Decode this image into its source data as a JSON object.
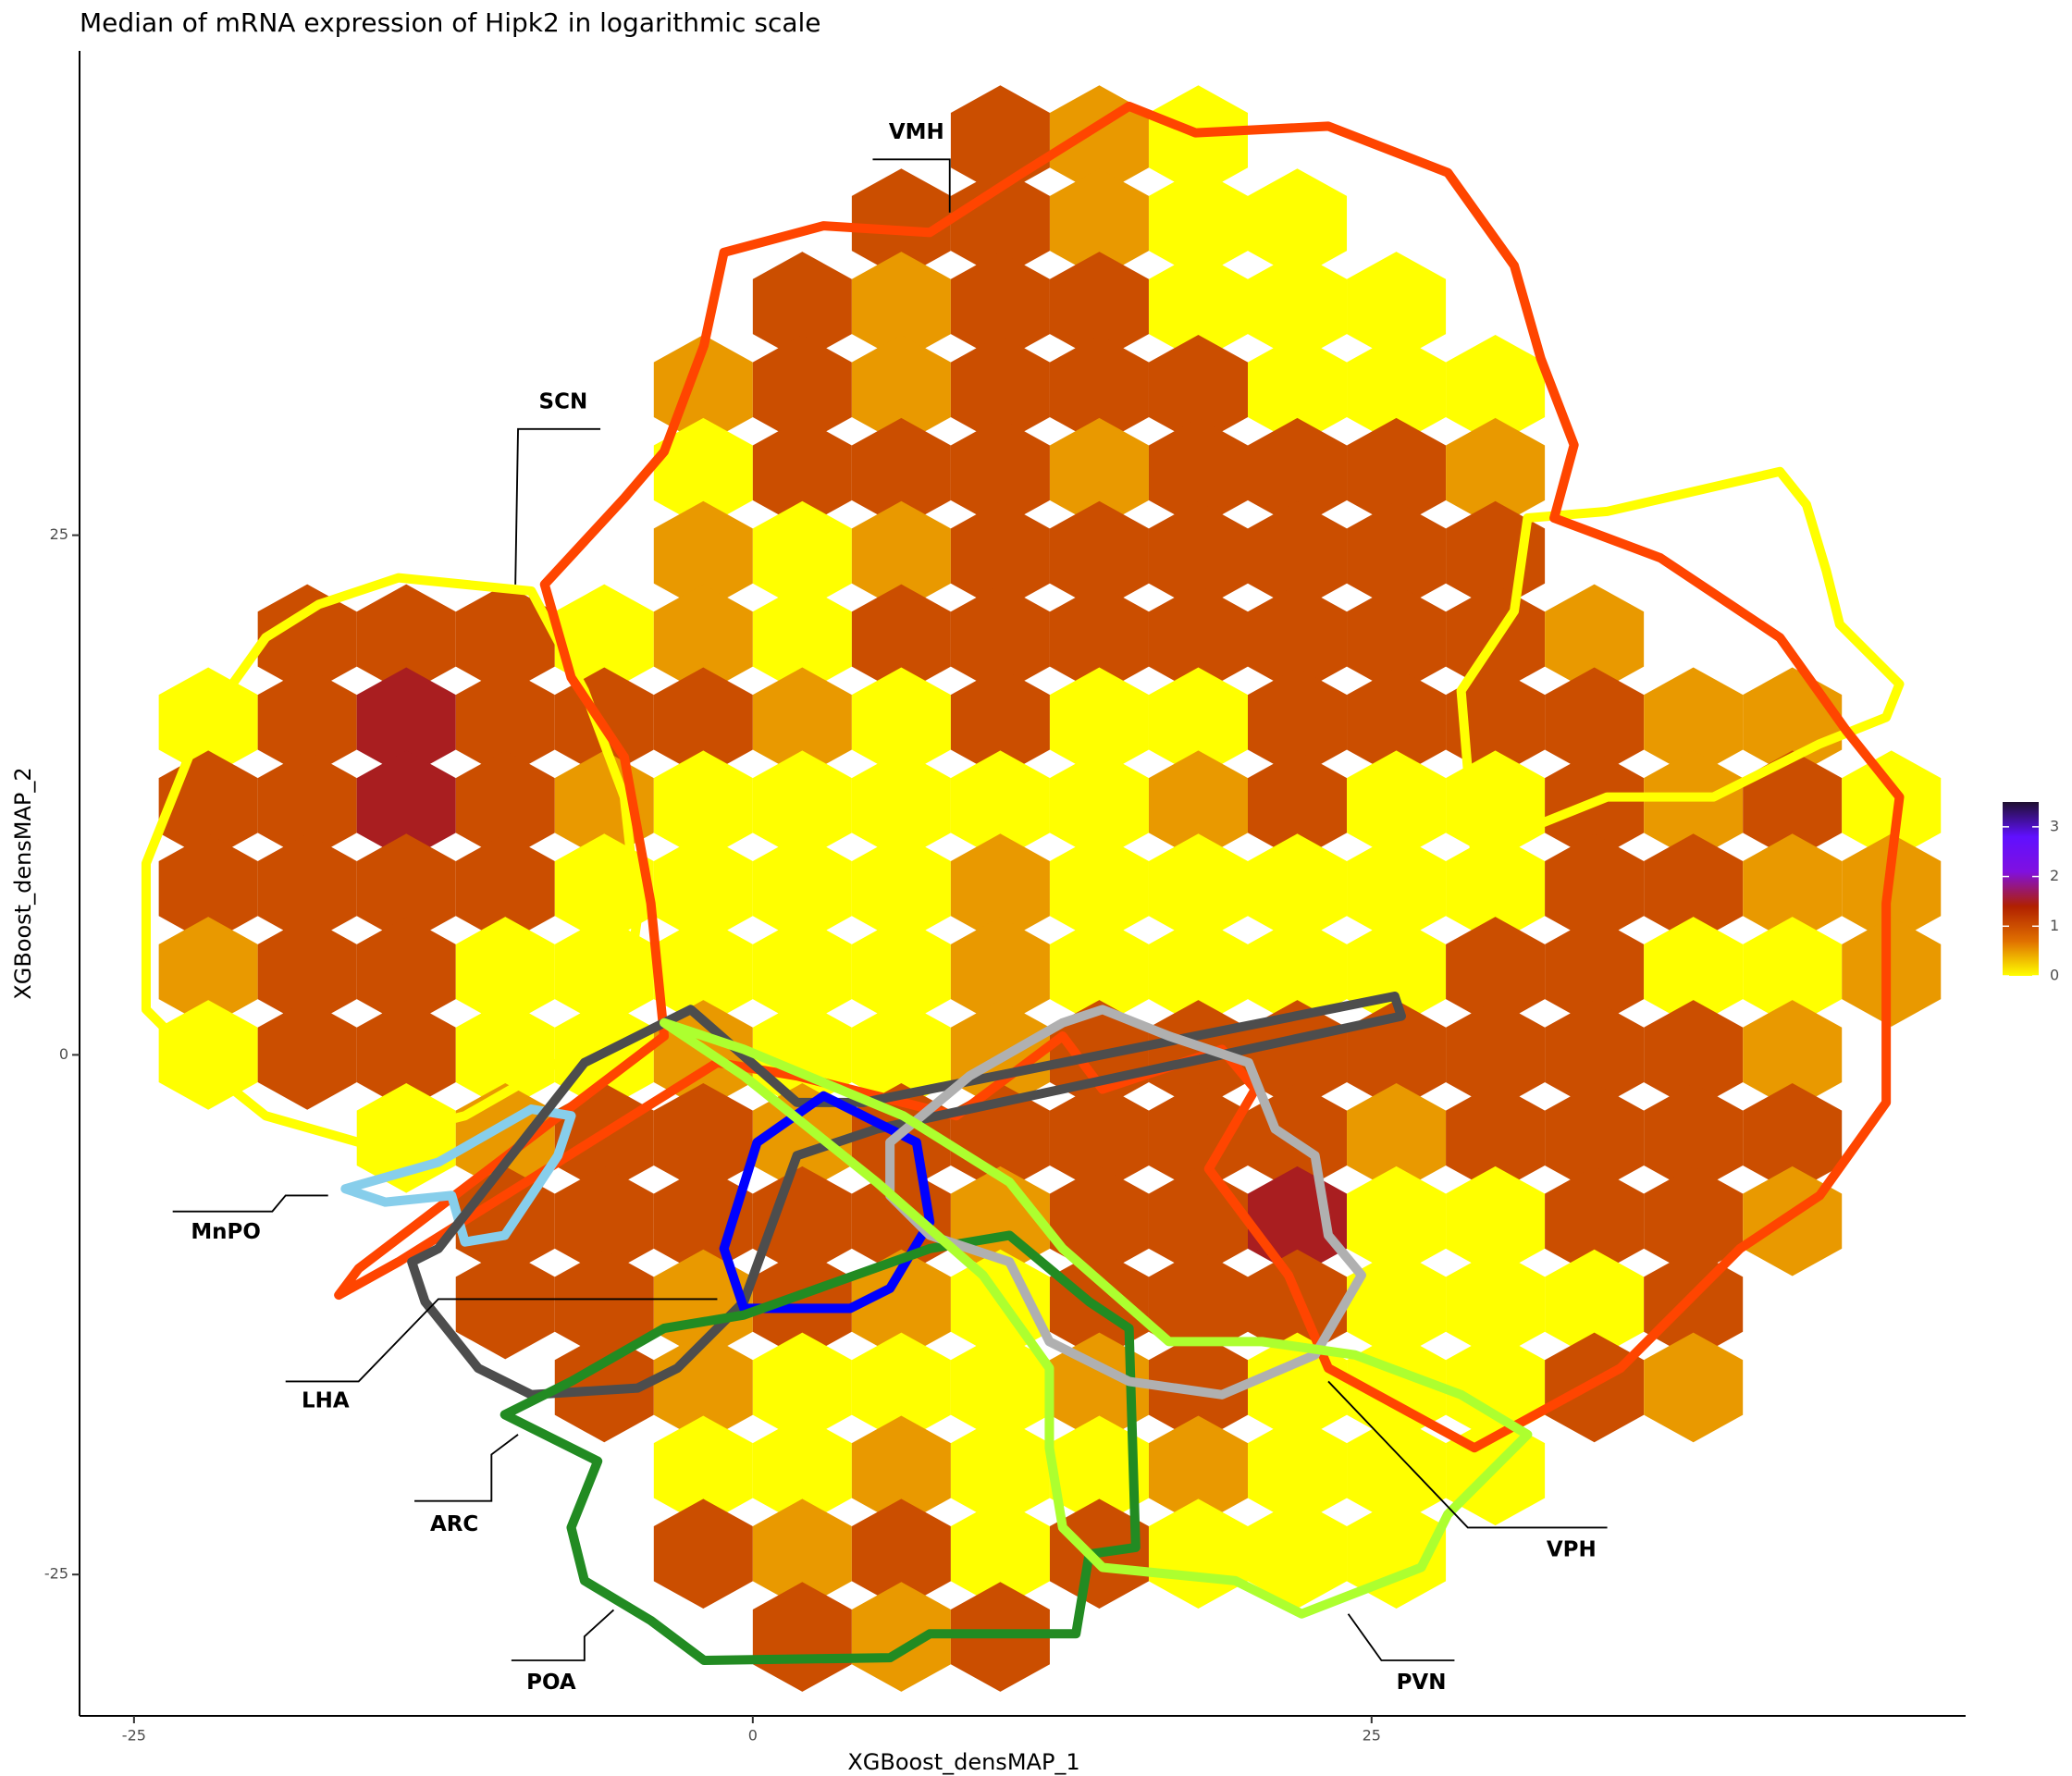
{
  "chart_data": {
    "type": "hexbin",
    "title": "Median of mRNA expression of Hipk2 in logarithmic scale",
    "x_label": "XGBoost_densMAP_1",
    "y_label": "XGBoost_densMAP_2",
    "xlim": [
      -27.2,
      49
    ],
    "ylim": [
      -31.8,
      48.3
    ],
    "xticks": [
      -25,
      0,
      25
    ],
    "yticks": [
      -25,
      0,
      25
    ],
    "x": [
      -22,
      -18,
      -14,
      -10,
      -6,
      -2,
      2,
      6,
      10,
      14,
      18,
      22,
      26,
      30,
      34,
      38,
      42,
      46
    ],
    "y": [
      44,
      40,
      36,
      32,
      28,
      24,
      20,
      16,
      12,
      8,
      4,
      0,
      -4,
      -8,
      -12,
      -16,
      -20,
      -24,
      -28
    ],
    "values": [
      [
        null,
        null,
        null,
        null,
        null,
        null,
        null,
        null,
        1,
        0.5,
        0,
        null,
        null,
        null,
        null,
        null,
        null,
        null
      ],
      [
        null,
        null,
        null,
        null,
        null,
        null,
        null,
        1,
        1,
        0.5,
        0,
        0,
        null,
        null,
        null,
        null,
        null,
        null
      ],
      [
        null,
        null,
        null,
        null,
        null,
        null,
        1,
        0.5,
        1,
        1,
        0,
        0,
        0,
        null,
        null,
        null,
        null,
        null
      ],
      [
        null,
        null,
        null,
        null,
        null,
        0.5,
        1,
        0.5,
        1,
        1,
        1,
        0,
        0,
        0,
        null,
        null,
        null,
        null
      ],
      [
        null,
        null,
        null,
        null,
        null,
        0,
        1,
        1,
        1,
        0.5,
        1,
        1,
        1,
        0.5,
        null,
        null,
        null,
        null
      ],
      [
        null,
        null,
        null,
        null,
        null,
        0.5,
        0,
        0.5,
        1,
        1,
        1,
        1,
        1,
        1,
        null,
        null,
        null,
        null
      ],
      [
        null,
        1,
        1,
        1,
        0,
        0.5,
        0,
        1,
        1,
        1,
        1,
        1,
        1,
        1,
        0.5,
        null,
        null,
        null
      ],
      [
        0,
        1,
        1.5,
        1,
        1,
        1,
        0.5,
        0,
        1,
        0,
        0,
        1,
        1,
        1,
        1,
        0.5,
        0.5,
        null
      ],
      [
        1,
        1,
        1.5,
        1,
        0.5,
        0,
        0,
        0,
        0,
        0,
        0.5,
        1,
        0,
        0,
        1,
        0.5,
        1,
        0
      ],
      [
        1,
        1,
        1,
        1,
        0,
        0,
        0,
        0,
        0.5,
        0,
        0,
        0,
        0,
        0,
        1,
        1,
        0.5,
        0.5
      ],
      [
        0.5,
        1,
        1,
        0,
        0,
        0,
        0,
        0,
        0.5,
        0,
        0,
        0,
        0,
        1,
        1,
        0,
        0,
        0.5
      ],
      [
        0,
        1,
        1,
        0,
        0,
        0.5,
        0,
        0,
        0.5,
        1,
        1,
        1,
        1,
        1,
        1,
        1,
        0.5,
        null
      ],
      [
        null,
        null,
        0,
        0.5,
        1,
        1,
        0.5,
        1,
        1,
        1,
        1,
        1,
        0.5,
        1,
        1,
        1,
        1,
        null
      ],
      [
        null,
        null,
        null,
        1,
        1,
        1,
        1,
        1,
        0.5,
        1,
        1,
        1.5,
        0,
        0,
        1,
        1,
        0.5,
        null
      ],
      [
        null,
        null,
        null,
        1,
        1,
        0.5,
        1,
        0.5,
        0,
        1,
        1,
        1,
        0,
        0,
        0,
        1,
        null,
        null
      ],
      [
        null,
        null,
        null,
        null,
        1,
        0.5,
        0,
        0,
        0,
        0.5,
        1,
        0,
        0,
        0,
        1,
        0.5,
        null,
        null
      ],
      [
        null,
        null,
        null,
        null,
        null,
        0,
        0,
        0.5,
        0,
        0,
        0.5,
        0,
        0,
        0,
        null,
        null,
        null,
        null
      ],
      [
        null,
        null,
        null,
        null,
        null,
        1,
        0.5,
        1,
        0,
        1,
        0,
        0,
        0,
        null,
        null,
        null,
        null,
        null
      ],
      [
        null,
        null,
        null,
        null,
        null,
        null,
        1,
        0.5,
        1,
        null,
        null,
        null,
        null,
        null,
        null,
        null,
        null,
        null
      ]
    ],
    "colorbar": {
      "lim": [
        0,
        3.5
      ],
      "ticks": [
        0,
        1,
        2,
        3
      ],
      "colors": [
        "#ffff00",
        "#e07000",
        "#b02000",
        "#8010e0",
        "#6010ff",
        "#201030"
      ]
    },
    "regions": [
      "VMH",
      "SCN",
      "MnPO",
      "LHA",
      "ARC",
      "POA",
      "VPH",
      "PVN"
    ]
  }
}
